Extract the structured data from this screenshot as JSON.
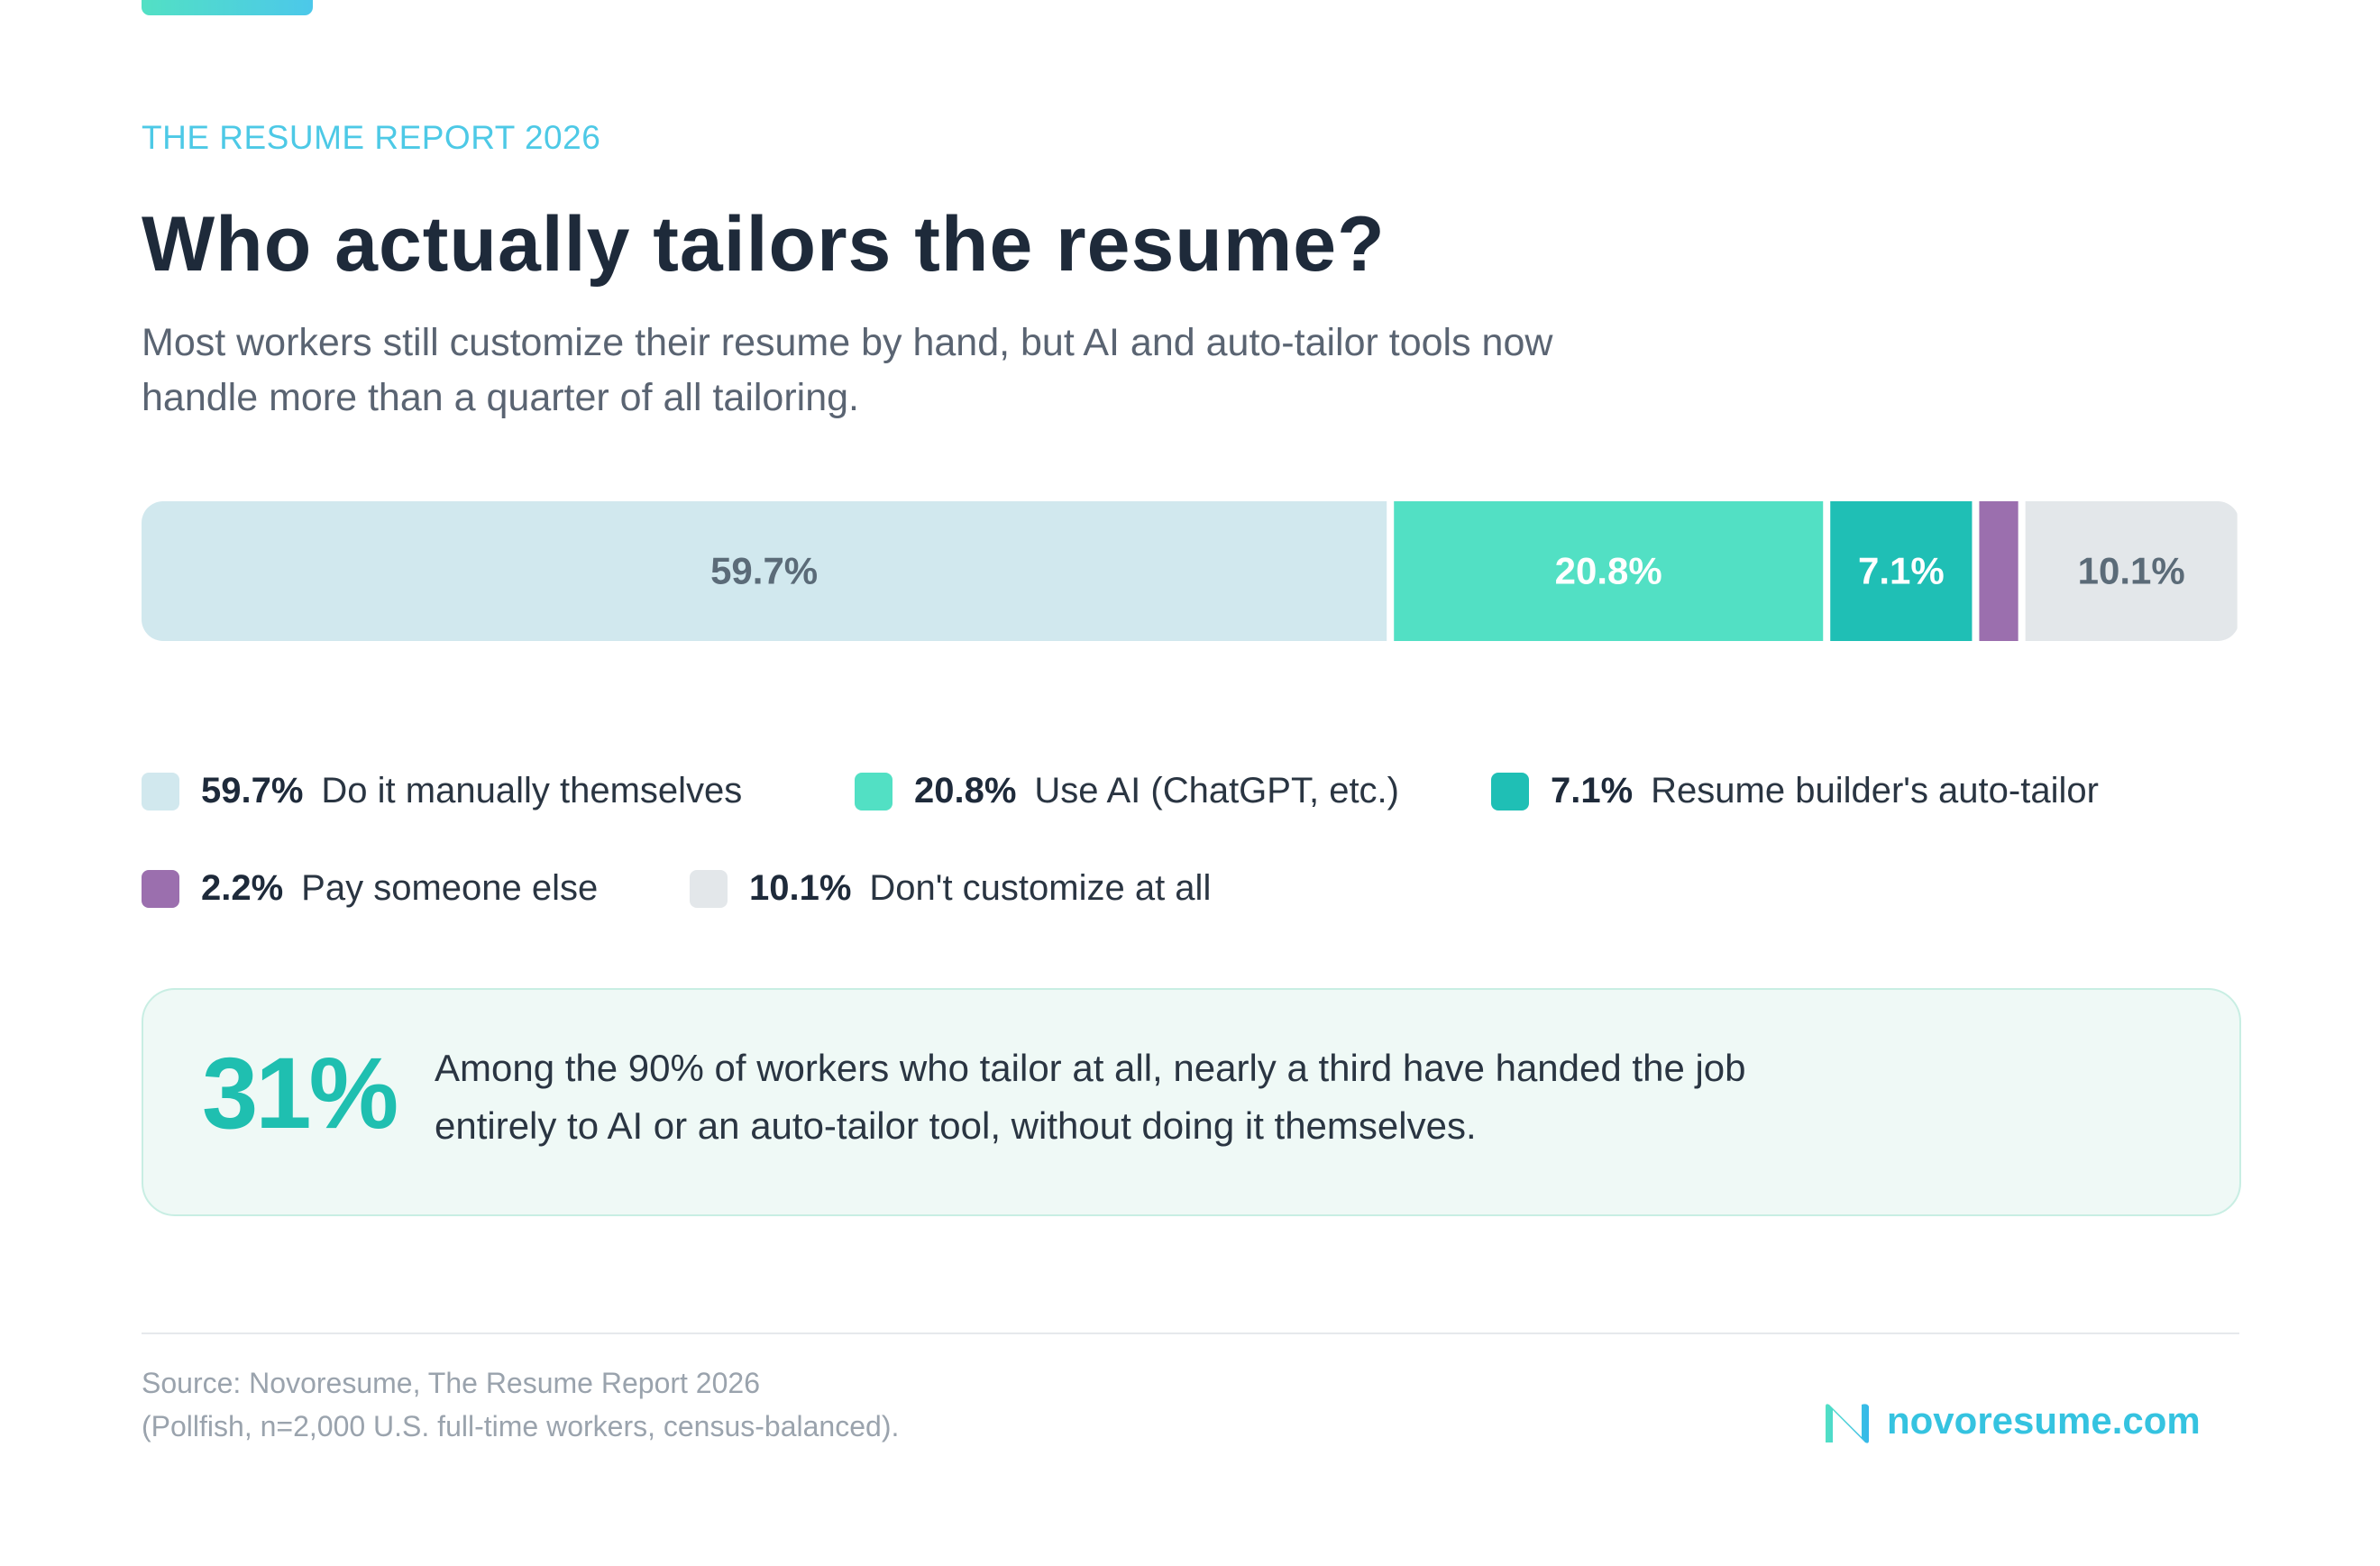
{
  "header": {
    "eyebrow": "THE RESUME REPORT 2026",
    "title": "Who actually tailors the resume?",
    "subtitle": "Most workers still customize their resume by hand, but AI and auto-tailor tools now handle more than a quarter of all tailoring."
  },
  "chart_data": {
    "type": "stacked-bar",
    "categories": [
      "Do it manually themselves",
      "Use AI (ChatGPT, etc.)",
      "Resume builder's auto-tailor",
      "Pay someone else",
      "Don't customize at all"
    ],
    "values": [
      59.7,
      20.8,
      7.1,
      2.2,
      10.1
    ],
    "value_labels": [
      "59.7%",
      "20.8%",
      "7.1%",
      "2.2%",
      "10.1%"
    ],
    "colors": [
      "#d1e8ee",
      "#52e0c4",
      "#1fbfb5",
      "#9b6fae",
      "#e3e7ea"
    ],
    "label_colors": [
      "#5b6b78",
      "#ffffff",
      "#ffffff",
      "#ffffff",
      "#5b6b78"
    ],
    "xlim": [
      0,
      100
    ]
  },
  "callout": {
    "stat": "31%",
    "text": "Among the 90% of workers who tailor at all, nearly a third have handed the job entirely to AI or an auto-tailor tool, without doing it themselves."
  },
  "footer": {
    "source": "Source: Novoresume, The Resume Report 2026",
    "method": "(Pollfish, n=2,000 U.S. full-time workers, census-balanced).",
    "brand": "novoresume.com"
  }
}
